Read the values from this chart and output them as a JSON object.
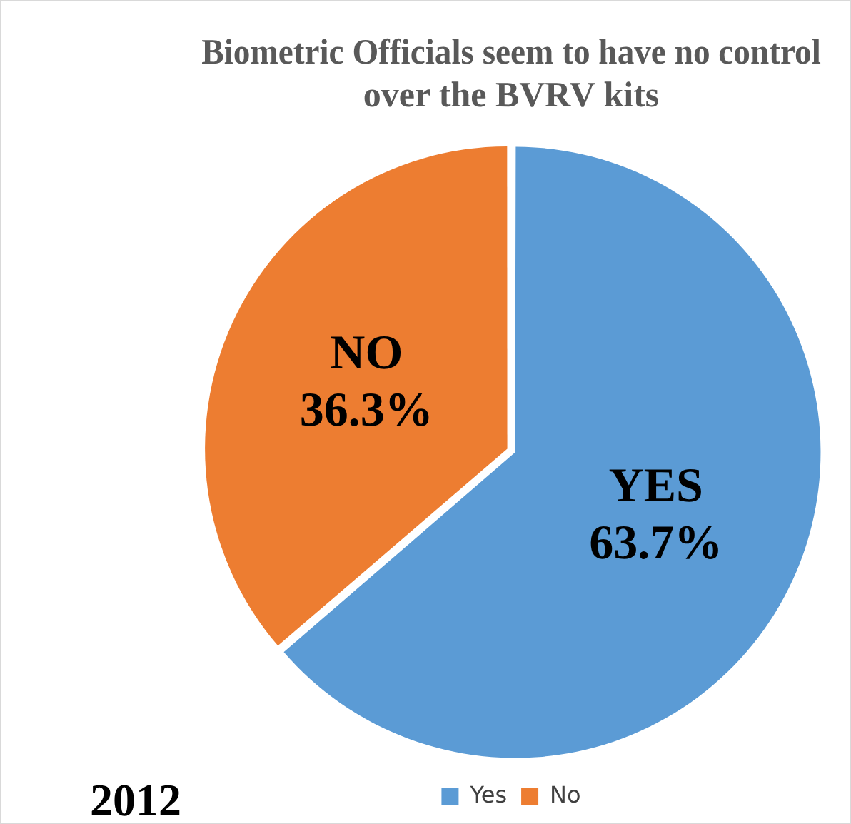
{
  "chart_data": {
    "type": "pie",
    "title": "Biometric Officials seem to have no control over the BVRV kits",
    "categories": [
      "Yes",
      "No"
    ],
    "values": [
      63.7,
      36.3
    ],
    "colors": [
      "#5b9bd5",
      "#ed7d31"
    ],
    "value_labels": [
      "YES 63.7%",
      "NO 36.3%"
    ],
    "legend": "bottom",
    "annotations": [
      "2012"
    ]
  }
}
